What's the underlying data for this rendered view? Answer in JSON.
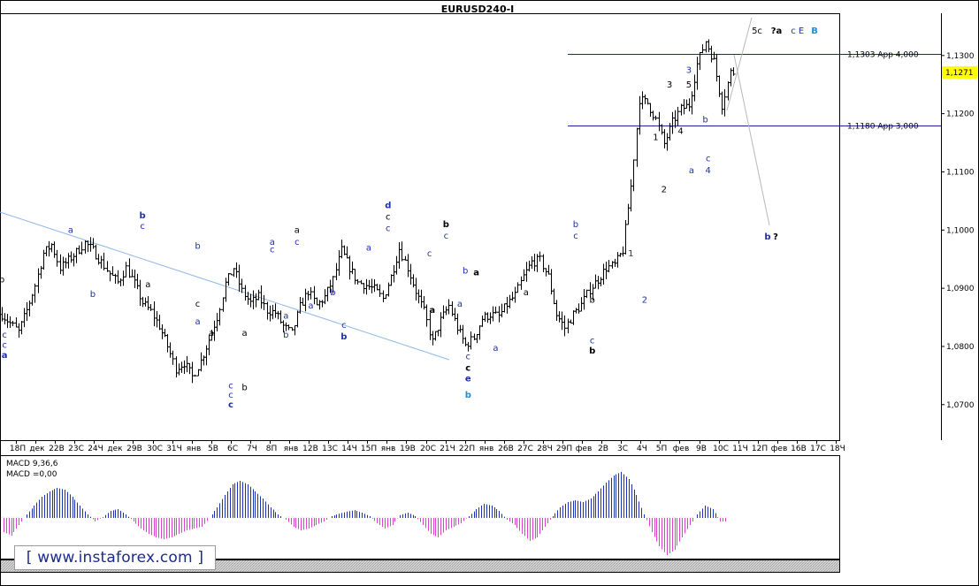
{
  "chart_title": "EURUSD240-I",
  "watermark": "[ www.instaforex.com ]",
  "macd_label": "MACD 9,36,6",
  "macd_value_label": "MACD =0,00",
  "price_label": "1,1271",
  "colors": {
    "bullish_wave_label": "#1f2fa8",
    "bearish_wave_label": "#000000",
    "macd_positive": "#1e2fb8",
    "macd_negative": "#e040d0",
    "level_line": "#1a22a0",
    "trend_line": "#8fb8e6",
    "price_label_bg": "#ffff00"
  },
  "chart_data": [
    {
      "type": "candlestick",
      "title": "EURUSD240-I",
      "ylim": [
        1.0645,
        1.1365
      ],
      "y_ticks": [
        "1,1300",
        "1,1200",
        "1,1100",
        "1,1000",
        "1,0900",
        "1,0800",
        "1,0700"
      ],
      "x_tick_labels": [
        "18П",
        "дек",
        "22В",
        "23С",
        "24Ч",
        "дек",
        "29В",
        "30С",
        "31Ч",
        "янв",
        "5В",
        "6С",
        "7Ч",
        "8П",
        "янв",
        "12В",
        "13С",
        "14Ч",
        "15П",
        "янв",
        "19В",
        "20С",
        "21Ч",
        "22П",
        "янв",
        "26В",
        "27С",
        "28Ч",
        "29П",
        "фев",
        "2В",
        "3С",
        "4Ч",
        "5П",
        "фев",
        "9В",
        "10С",
        "11Ч",
        "12П",
        "фев",
        "16В",
        "17С",
        "18Ч"
      ],
      "current_price": 1.1271,
      "horizontal_levels": [
        {
          "price": 1.1303,
          "label": "1,1303 App 4,000"
        },
        {
          "price": 1.118,
          "label": "1,1180 App 3,000"
        }
      ],
      "close_path": [
        [
          0,
          1.0855
        ],
        [
          3,
          1.084
        ],
        [
          6,
          1.0825
        ],
        [
          9,
          1.0862
        ],
        [
          12,
          1.0905
        ],
        [
          15,
          1.096
        ],
        [
          18,
          1.0975
        ],
        [
          21,
          1.0935
        ],
        [
          24,
          1.0948
        ],
        [
          27,
          1.0962
        ],
        [
          30,
          1.0978
        ],
        [
          33,
          1.0965
        ],
        [
          36,
          1.0945
        ],
        [
          39,
          1.0925
        ],
        [
          42,
          1.091
        ],
        [
          45,
          1.0935
        ],
        [
          48,
          1.0908
        ],
        [
          51,
          1.0875
        ],
        [
          54,
          1.086
        ],
        [
          57,
          1.0835
        ],
        [
          60,
          1.08
        ],
        [
          63,
          1.0762
        ],
        [
          66,
          1.0772
        ],
        [
          69,
          1.0748
        ],
        [
          72,
          1.0775
        ],
        [
          75,
          1.0812
        ],
        [
          78,
          1.085
        ],
        [
          81,
          1.0908
        ],
        [
          84,
          1.0935
        ],
        [
          87,
          1.0895
        ],
        [
          90,
          1.0875
        ],
        [
          93,
          1.0885
        ],
        [
          96,
          1.0862
        ],
        [
          99,
          1.0858
        ],
        [
          102,
          1.0835
        ],
        [
          105,
          1.0822
        ],
        [
          108,
          1.0868
        ],
        [
          111,
          1.0895
        ],
        [
          114,
          1.087
        ],
        [
          117,
          1.0885
        ],
        [
          120,
          1.0915
        ],
        [
          123,
          1.0965
        ],
        [
          126,
          1.0935
        ],
        [
          129,
          1.091
        ],
        [
          132,
          1.0905
        ],
        [
          135,
          1.0898
        ],
        [
          138,
          1.0882
        ],
        [
          141,
          1.092
        ],
        [
          144,
          1.0968
        ],
        [
          147,
          1.0935
        ],
        [
          150,
          1.0895
        ],
        [
          153,
          1.086
        ],
        [
          156,
          1.0808
        ],
        [
          159,
          1.0845
        ],
        [
          162,
          1.087
        ],
        [
          165,
          1.0832
        ],
        [
          168,
          1.0802
        ],
        [
          171,
          1.0815
        ],
        [
          174,
          1.0848
        ],
        [
          177,
          1.0855
        ],
        [
          180,
          1.0852
        ],
        [
          183,
          1.0872
        ],
        [
          186,
          1.0888
        ],
        [
          189,
          1.092
        ],
        [
          192,
          1.0945
        ],
        [
          195,
          1.0948
        ],
        [
          198,
          1.092
        ],
        [
          201,
          1.0855
        ],
        [
          204,
          1.0832
        ],
        [
          207,
          1.0855
        ],
        [
          210,
          1.0872
        ],
        [
          213,
          1.0898
        ],
        [
          216,
          1.0915
        ],
        [
          219,
          1.0935
        ],
        [
          222,
          1.094
        ],
        [
          225,
          1.0965
        ],
        [
          228,
          1.1075
        ],
        [
          231,
          1.1225
        ],
        [
          234,
          1.1218
        ],
        [
          237,
          1.119
        ],
        [
          240,
          1.1148
        ],
        [
          243,
          1.1185
        ],
        [
          246,
          1.1208
        ],
        [
          249,
          1.1215
        ],
        [
          252,
          1.1285
        ],
        [
          255,
          1.1325
        ],
        [
          258,
          1.129
        ],
        [
          261,
          1.1215
        ],
        [
          264,
          1.1271
        ]
      ],
      "wave_labels": [
        {
          "i": 0,
          "p": 1.091,
          "t": "b",
          "c": "k"
        },
        {
          "i": 1,
          "p": 1.0815,
          "t": "c",
          "c": "b"
        },
        {
          "i": 1,
          "p": 1.0798,
          "t": "c",
          "c": "b"
        },
        {
          "i": 1,
          "p": 1.078,
          "t": "a",
          "c": "bb"
        },
        {
          "i": 25,
          "p": 1.0995,
          "t": "a",
          "c": "b"
        },
        {
          "i": 33,
          "p": 1.0885,
          "t": "b",
          "c": "b"
        },
        {
          "i": 51,
          "p": 1.102,
          "t": "b",
          "c": "bb"
        },
        {
          "i": 51,
          "p": 1.1002,
          "t": "c",
          "c": "b"
        },
        {
          "i": 53,
          "p": 1.0902,
          "t": "a",
          "c": "k"
        },
        {
          "i": 71,
          "p": 1.0968,
          "t": "b",
          "c": "b"
        },
        {
          "i": 71,
          "p": 1.0868,
          "t": "c",
          "c": "k"
        },
        {
          "i": 71,
          "p": 1.0838,
          "t": "a",
          "c": "b"
        },
        {
          "i": 76,
          "p": 1.0818,
          "t": "a",
          "c": "k"
        },
        {
          "i": 83,
          "p": 1.0728,
          "t": "c",
          "c": "b"
        },
        {
          "i": 83,
          "p": 1.0712,
          "t": "c",
          "c": "b"
        },
        {
          "i": 83,
          "p": 1.0695,
          "t": "c",
          "c": "bb"
        },
        {
          "i": 88,
          "p": 1.0818,
          "t": "a",
          "c": "k"
        },
        {
          "i": 88,
          "p": 1.0725,
          "t": "b",
          "c": "k"
        },
        {
          "i": 98,
          "p": 1.0975,
          "t": "a",
          "c": "b"
        },
        {
          "i": 98,
          "p": 1.0962,
          "t": "c",
          "c": "b"
        },
        {
          "i": 103,
          "p": 1.0848,
          "t": "a",
          "c": "b"
        },
        {
          "i": 103,
          "p": 1.0815,
          "t": "b",
          "c": "b"
        },
        {
          "i": 107,
          "p": 1.0995,
          "t": "a",
          "c": "k"
        },
        {
          "i": 107,
          "p": 1.0975,
          "t": "c",
          "c": "b"
        },
        {
          "i": 112,
          "p": 1.0865,
          "t": "a",
          "c": "b"
        },
        {
          "i": 120,
          "p": 1.0888,
          "t": "b",
          "c": "b"
        },
        {
          "i": 124,
          "p": 1.0832,
          "t": "c",
          "c": "b"
        },
        {
          "i": 124,
          "p": 1.0812,
          "t": "b",
          "c": "bb"
        },
        {
          "i": 133,
          "p": 1.0965,
          "t": "a",
          "c": "b"
        },
        {
          "i": 140,
          "p": 1.1038,
          "t": "d",
          "c": "bb"
        },
        {
          "i": 140,
          "p": 1.1018,
          "t": "c",
          "c": "k"
        },
        {
          "i": 140,
          "p": 1.0998,
          "t": "c",
          "c": "b"
        },
        {
          "i": 155,
          "p": 1.0955,
          "t": "c",
          "c": "b"
        },
        {
          "i": 156,
          "p": 1.0858,
          "t": "a",
          "c": "kb"
        },
        {
          "i": 161,
          "p": 1.1005,
          "t": "b",
          "c": "kb"
        },
        {
          "i": 161,
          "p": 1.0985,
          "t": "c",
          "c": "b"
        },
        {
          "i": 168,
          "p": 1.0925,
          "t": "b",
          "c": "b"
        },
        {
          "i": 172,
          "p": 1.0922,
          "t": "a",
          "c": "kb"
        },
        {
          "i": 166,
          "p": 1.0868,
          "t": "a",
          "c": "b"
        },
        {
          "i": 169,
          "p": 1.0778,
          "t": "c",
          "c": "b"
        },
        {
          "i": 169,
          "p": 1.0758,
          "t": "c",
          "c": "kb"
        },
        {
          "i": 169,
          "p": 1.074,
          "t": "e",
          "c": "bb"
        },
        {
          "i": 169,
          "p": 1.0712,
          "t": "b",
          "c": "sb"
        },
        {
          "i": 179,
          "p": 1.0792,
          "t": "a",
          "c": "b"
        },
        {
          "i": 190,
          "p": 1.0888,
          "t": "a",
          "c": "k"
        },
        {
          "i": 208,
          "p": 1.1005,
          "t": "b",
          "c": "b"
        },
        {
          "i": 208,
          "p": 1.0985,
          "t": "c",
          "c": "b"
        },
        {
          "i": 214,
          "p": 1.0875,
          "t": "b",
          "c": "k"
        },
        {
          "i": 214,
          "p": 1.0805,
          "t": "c",
          "c": "b"
        },
        {
          "i": 214,
          "p": 1.0788,
          "t": "b",
          "c": "kb"
        },
        {
          "i": 228,
          "p": 1.0955,
          "t": "1",
          "c": "b"
        },
        {
          "i": 233,
          "p": 1.0875,
          "t": "2",
          "c": "b"
        },
        {
          "i": 237,
          "p": 1.1155,
          "t": "1",
          "c": "k"
        },
        {
          "i": 240,
          "p": 1.1065,
          "t": "2",
          "c": "k"
        },
        {
          "i": 242,
          "p": 1.1245,
          "t": "3",
          "c": "k"
        },
        {
          "i": 246,
          "p": 1.1165,
          "t": "4",
          "c": "k"
        },
        {
          "i": 249,
          "p": 1.1245,
          "t": "5",
          "c": "k"
        },
        {
          "i": 249,
          "p": 1.127,
          "t": "3",
          "c": "b"
        },
        {
          "i": 250,
          "p": 1.1098,
          "t": "a",
          "c": "b"
        },
        {
          "i": 255,
          "p": 1.1185,
          "t": "b",
          "c": "b"
        },
        {
          "i": 256,
          "p": 1.1118,
          "t": "c",
          "c": "b"
        },
        {
          "i": 256,
          "p": 1.1098,
          "t": "4",
          "c": "b"
        }
      ],
      "projection_labels": [
        {
          "t": "5c",
          "c": "k"
        },
        {
          "t": "?a",
          "c": "kb"
        },
        {
          "t": "c",
          "c": "b"
        },
        {
          "t": "E",
          "c": "b"
        },
        {
          "t": "B",
          "c": "sb"
        },
        {
          "t": "b",
          "c": "bb"
        },
        {
          "t": "?",
          "c": "kb"
        }
      ]
    },
    {
      "type": "bar",
      "title": "MACD 9,36,6",
      "series": [
        {
          "name": "MACD",
          "values": [
            -0.4,
            -0.5,
            -0.2,
            0.1,
            0.35,
            0.6,
            0.75,
            0.85,
            0.8,
            0.6,
            0.35,
            0.1,
            -0.1,
            0.02,
            0.2,
            0.25,
            0.1,
            -0.1,
            -0.3,
            -0.45,
            -0.55,
            -0.6,
            -0.55,
            -0.45,
            -0.35,
            -0.3,
            -0.25,
            0.0,
            0.3,
            0.65,
            0.95,
            1.05,
            0.95,
            0.75,
            0.55,
            0.3,
            0.1,
            -0.05,
            -0.25,
            -0.35,
            -0.3,
            -0.2,
            -0.1,
            0.05,
            0.12,
            0.18,
            0.22,
            0.15,
            0.05,
            -0.15,
            -0.3,
            -0.2,
            0.08,
            0.15,
            0.05,
            -0.2,
            -0.45,
            -0.55,
            -0.35,
            -0.25,
            -0.15,
            0.05,
            0.25,
            0.4,
            0.35,
            0.2,
            -0.05,
            -0.2,
            -0.45,
            -0.65,
            -0.55,
            -0.25,
            0.05,
            0.3,
            0.45,
            0.5,
            0.45,
            0.55,
            0.75,
            1.0,
            1.2,
            1.3,
            1.1,
            0.65,
            0.1,
            -0.4,
            -0.8,
            -1.05,
            -0.9,
            -0.55,
            -0.2,
            0.1,
            0.35,
            0.25,
            -0.1
          ]
        }
      ],
      "ylim": [
        -1.25,
        1.4
      ]
    }
  ]
}
